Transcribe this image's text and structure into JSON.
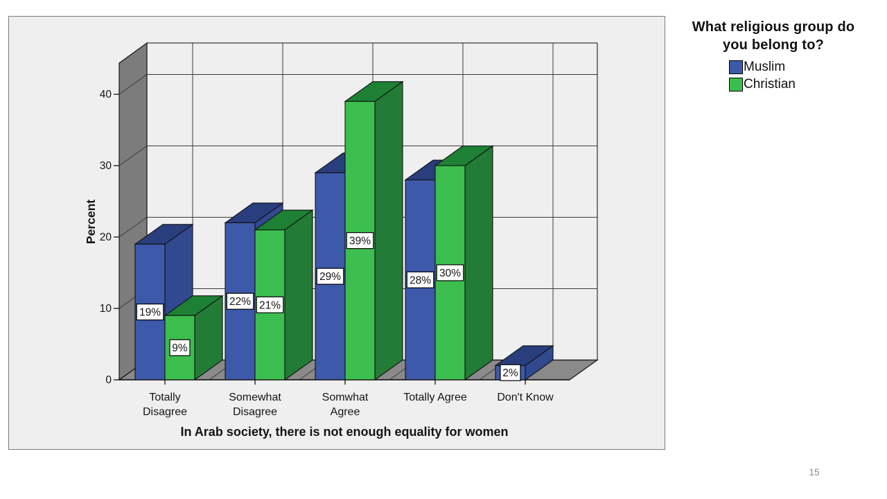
{
  "page": {
    "number": "15"
  },
  "legend": {
    "title_line1": "What religious group do",
    "title_line2": "you belong to?"
  },
  "chart_data": {
    "type": "bar",
    "projection": "3d",
    "xlabel": "In Arab society, there is not enough equality for women",
    "ylabel": "Percent",
    "ylim": [
      0,
      45
    ],
    "yticks": [
      0,
      10,
      20,
      30,
      40
    ],
    "grid": true,
    "legend_position": "top-right",
    "categories": [
      [
        "Totally",
        "Disagree"
      ],
      [
        "Somewhat",
        "Disagree"
      ],
      [
        "Somwhat",
        "Agree"
      ],
      [
        "Totally Agree"
      ],
      [
        "Don't Know"
      ]
    ],
    "series": [
      {
        "name": "Muslim",
        "values": [
          19,
          22,
          29,
          28,
          2
        ],
        "labels": [
          "19%",
          "22%",
          "29%",
          "28%",
          "2%"
        ],
        "color": "#3D59A9",
        "color_top": "#293E7D",
        "color_side": "#31498F"
      },
      {
        "name": "Christian",
        "values": [
          9,
          21,
          39,
          30,
          null
        ],
        "labels": [
          "9%",
          "21%",
          "39%",
          "30%",
          null
        ],
        "color": "#3CBE4E",
        "color_top": "#1E8034",
        "color_side": "#227C36"
      }
    ],
    "colors": {
      "wall": "#7C7C7C",
      "floor": "#8A8A8A",
      "background": "#F0EFF0",
      "gridline": "#3A3A3A",
      "edge": "#111111",
      "text": "#141414"
    }
  }
}
